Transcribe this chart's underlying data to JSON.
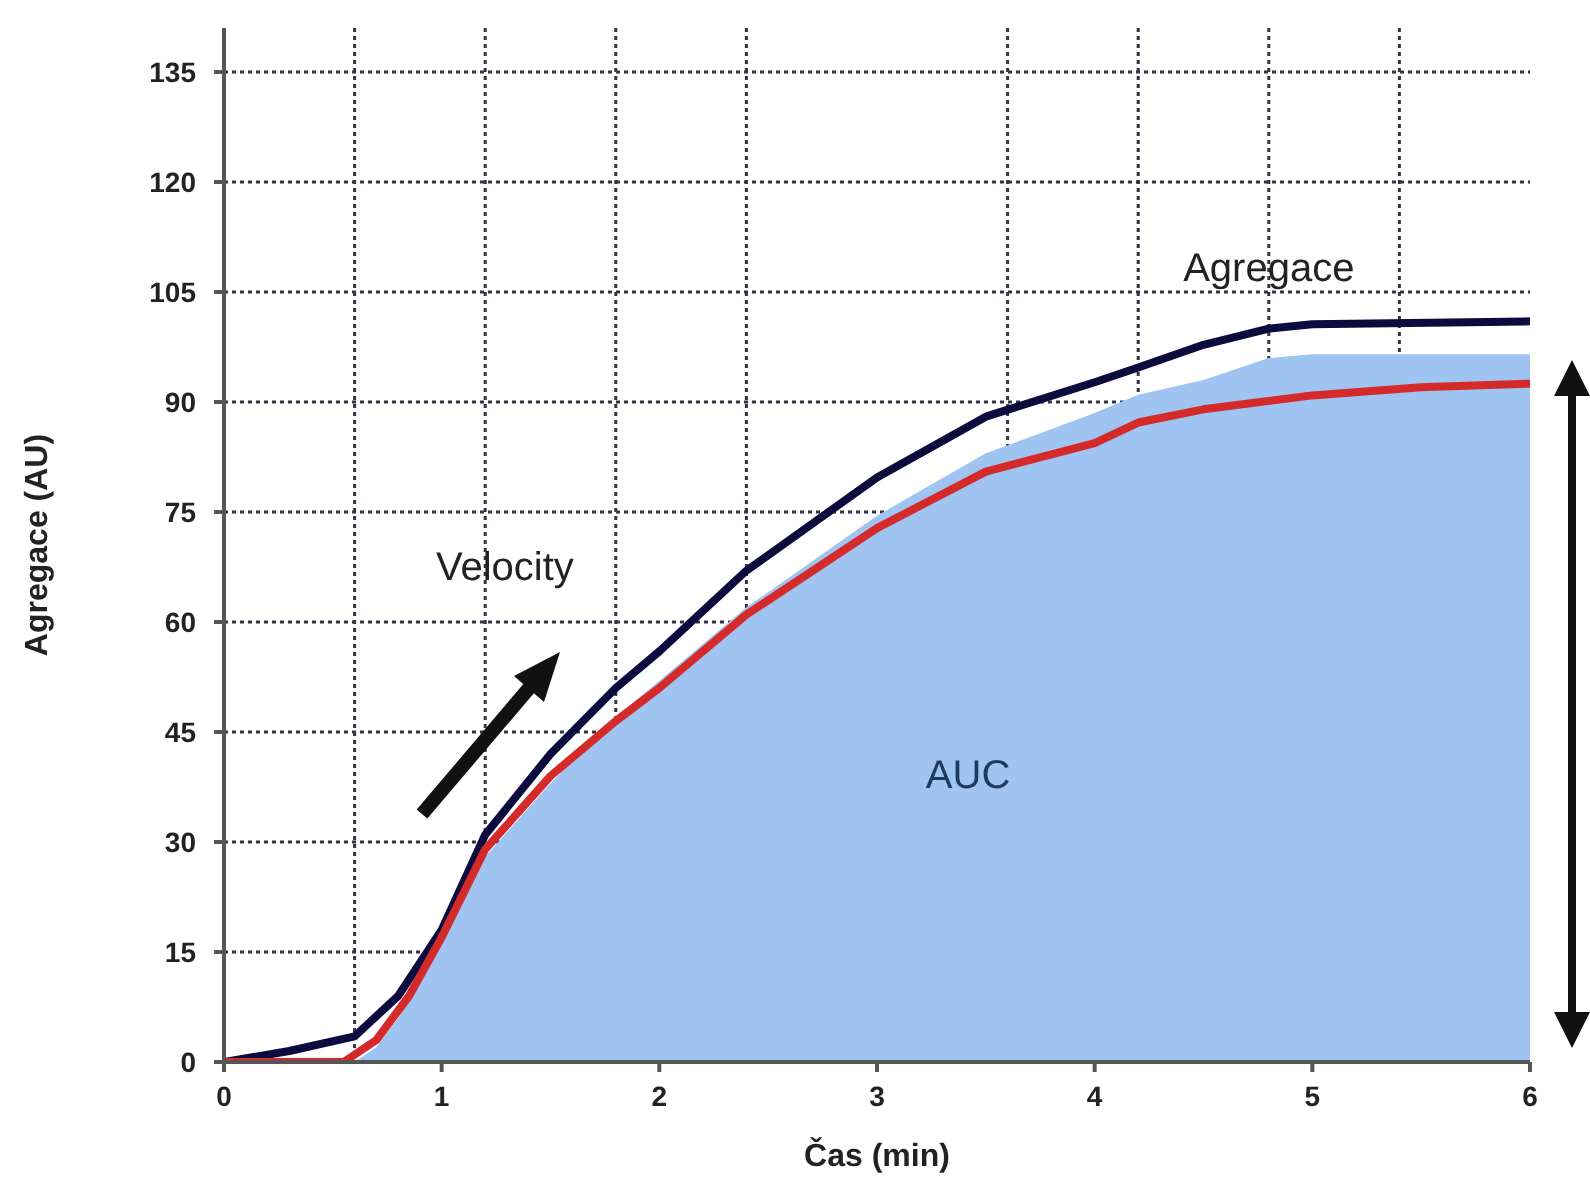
{
  "chart_data": {
    "type": "line",
    "xlabel": "Čas (min)",
    "ylabel": "Agregace (AU)",
    "xlim": [
      0,
      6
    ],
    "ylim": [
      0,
      141
    ],
    "xticks": [
      0,
      {
        "value": 0.6,
        "label": null
      },
      1,
      {
        "value": 1.2,
        "label": null
      },
      {
        "value": 1.8,
        "label": null
      },
      2,
      {
        "value": 2.4,
        "label": null
      },
      3,
      {
        "value": 3.6,
        "label": null
      },
      4,
      {
        "value": 4.2,
        "label": null
      },
      {
        "value": 4.8,
        "label": null
      },
      5,
      {
        "value": 5.4,
        "label": null
      },
      6
    ],
    "yticks": [
      0,
      15,
      30,
      45,
      60,
      75,
      90,
      105,
      120,
      135
    ],
    "grid": true,
    "legend": false,
    "marker": "none",
    "line_style": "solid",
    "annotations": [
      "Velocity"
    ],
    "series": [
      {
        "name": "AUC",
        "type": "area",
        "color": "#9fc4f2",
        "x": [
          0,
          0.6,
          0.7,
          0.8,
          1.0,
          1.2,
          1.5,
          1.8,
          2.0,
          2.4,
          3.0,
          3.5,
          4.0,
          4.2,
          4.5,
          4.8,
          5.0,
          6.0
        ],
        "values": [
          0,
          0,
          2,
          6,
          16,
          28,
          38,
          47,
          52,
          62,
          74.5,
          83,
          88.5,
          91,
          93,
          96,
          96.5,
          96.5
        ]
      },
      {
        "name": "Agregace",
        "color": "#0b0b3d",
        "x": [
          0,
          0.3,
          0.6,
          0.8,
          1.0,
          1.2,
          1.5,
          1.8,
          2.0,
          2.4,
          3.0,
          3.5,
          4.0,
          4.2,
          4.5,
          4.8,
          5.0,
          6.0
        ],
        "values": [
          0,
          1.5,
          3.5,
          9,
          18,
          31,
          42,
          51,
          56,
          67,
          79.7,
          88,
          92.7,
          94.7,
          97.8,
          100,
          100.6,
          101
        ]
      },
      {
        "color": "#d42a2a",
        "x": [
          0,
          0.55,
          0.7,
          0.85,
          1.0,
          1.2,
          1.5,
          1.8,
          2.0,
          2.4,
          3.0,
          3.5,
          4.0,
          4.2,
          4.5,
          5.0,
          5.5,
          6.0
        ],
        "values": [
          0,
          0,
          3,
          9,
          17,
          29,
          39,
          46.5,
          51,
          61,
          72.8,
          80.5,
          84.4,
          87.2,
          89,
          90.9,
          92,
          92.5
        ]
      }
    ]
  }
}
